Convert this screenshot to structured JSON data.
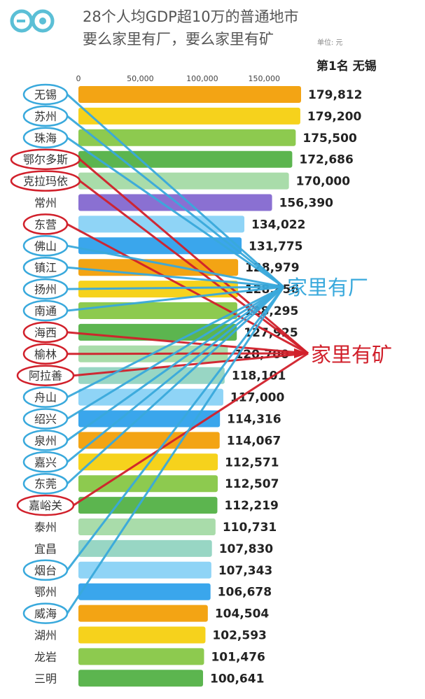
{
  "header": {
    "logo_text": "究竟",
    "title_line1": "28个人均GDP超10万的普通地市",
    "title_line2": "要么家里有厂，要么家里有矿",
    "unit": "单位: 元",
    "rank_label": "第1名 无锡"
  },
  "annotations": {
    "factory": {
      "label": "家里有厂",
      "color": "#39a9dc"
    },
    "mine": {
      "label": "家里有矿",
      "color": "#d1202b"
    }
  },
  "chart_data": {
    "type": "bar",
    "orientation": "horizontal",
    "xlim": [
      0,
      180000
    ],
    "x_ticks": [
      "0",
      "50,000",
      "100,000",
      "150,000"
    ],
    "x_tick_values": [
      0,
      50000,
      100000,
      150000
    ],
    "grid": false,
    "categories": [
      "无锡",
      "苏州",
      "珠海",
      "鄂尔多斯",
      "克拉玛依",
      "常州",
      "东营",
      "佛山",
      "镇江",
      "扬州",
      "南通",
      "海西",
      "榆林",
      "阿拉善",
      "舟山",
      "绍兴",
      "泉州",
      "嘉兴",
      "东莞",
      "嘉峪关",
      "泰州",
      "宜昌",
      "烟台",
      "鄂州",
      "威海",
      "湖州",
      "龙岩",
      "三明"
    ],
    "values": [
      179812,
      179200,
      175500,
      172686,
      170000,
      156390,
      134022,
      131775,
      128979,
      128856,
      128295,
      127925,
      120700,
      118101,
      117000,
      114316,
      114067,
      112571,
      112507,
      112219,
      110731,
      107830,
      107343,
      106678,
      104504,
      102593,
      101476,
      100641
    ],
    "value_labels": [
      "179,812",
      "179,200",
      "175,500",
      "172,686",
      "170,000",
      "156,390",
      "134,022",
      "131,775",
      "128,979",
      "128,856",
      "128,295",
      "127,925",
      "120,700",
      "118,101",
      "117,000",
      "114,316",
      "114,067",
      "112,571",
      "112,507",
      "112,219",
      "110,731",
      "107,830",
      "107,343",
      "106,678",
      "104,504",
      "102,593",
      "101,476",
      "100,641"
    ],
    "colors": [
      "#f3a414",
      "#f6d21c",
      "#8dca4f",
      "#5cb54f",
      "#a9dcaa",
      "#8a70d2",
      "#8fd4f6",
      "#3aa6ec",
      "#f3a414",
      "#f6d21c",
      "#8dca4f",
      "#5cb54f",
      "#a9dcaa",
      "#98d6c4",
      "#8fd4f6",
      "#3aa6ec",
      "#f3a414",
      "#f6d21c",
      "#8dca4f",
      "#5cb54f",
      "#a9dcaa",
      "#98d6c4",
      "#8fd4f6",
      "#3aa6ec",
      "#f3a414",
      "#f6d21c",
      "#8dca4f",
      "#5cb54f"
    ],
    "group": [
      "factory",
      "factory",
      "factory",
      "mine",
      "mine",
      "",
      "mine",
      "factory",
      "factory",
      "factory",
      "factory",
      "mine",
      "mine",
      "mine",
      "factory",
      "factory",
      "factory",
      "factory",
      "factory",
      "mine",
      "",
      "",
      "factory",
      "",
      "factory",
      "",
      "",
      ""
    ]
  }
}
